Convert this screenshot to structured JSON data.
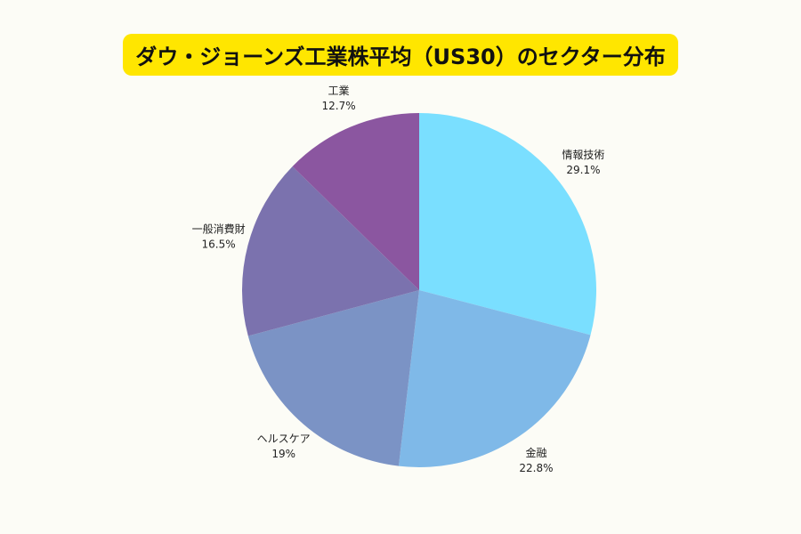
{
  "chart_data": {
    "type": "pie",
    "title": "ダウ・ジョーンズ工業株平均（US30）のセクター分布",
    "categories": [
      "情報技術",
      "金融",
      "ヘルスケア",
      "一般消費財",
      "工業"
    ],
    "values": [
      29.1,
      22.8,
      19,
      16.5,
      12.7
    ],
    "value_labels": [
      "29.1%",
      "22.8%",
      "19%",
      "16.5%",
      "12.7%"
    ],
    "colors": [
      "#7adfff",
      "#7fb9e8",
      "#7b93c5",
      "#7b72ae",
      "#8b56a0"
    ]
  }
}
